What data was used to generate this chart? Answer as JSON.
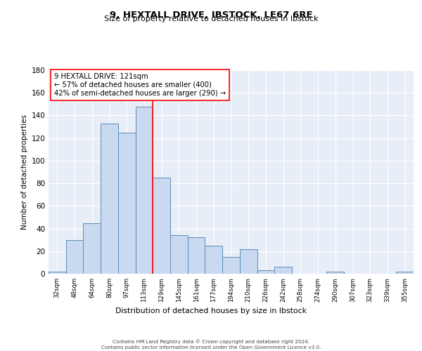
{
  "title1": "9, HEXTALL DRIVE, IBSTOCK, LE67 6RE",
  "title2": "Size of property relative to detached houses in Ibstock",
  "xlabel": "Distribution of detached houses by size in Ibstock",
  "ylabel": "Number of detached properties",
  "categories": [
    "32sqm",
    "48sqm",
    "64sqm",
    "80sqm",
    "97sqm",
    "113sqm",
    "129sqm",
    "145sqm",
    "161sqm",
    "177sqm",
    "194sqm",
    "210sqm",
    "226sqm",
    "242sqm",
    "258sqm",
    "274sqm",
    "290sqm",
    "307sqm",
    "323sqm",
    "339sqm",
    "355sqm"
  ],
  "values": [
    2,
    30,
    45,
    133,
    125,
    148,
    85,
    34,
    32,
    25,
    15,
    22,
    3,
    6,
    0,
    0,
    2,
    0,
    0,
    0,
    2
  ],
  "bar_color": "#c9d9ef",
  "bar_edge_color": "#5b8db8",
  "annotation_text": "9 HEXTALL DRIVE: 121sqm\n← 57% of detached houses are smaller (400)\n42% of semi-detached houses are larger (290) →",
  "annotation_box_color": "white",
  "annotation_box_edge_color": "red",
  "vline_color": "red",
  "background_color": "#e8eef8",
  "grid_color": "white",
  "ylim": [
    0,
    180
  ],
  "yticks": [
    0,
    20,
    40,
    60,
    80,
    100,
    120,
    140,
    160,
    180
  ],
  "footer1": "Contains HM Land Registry data © Crown copyright and database right 2024.",
  "footer2": "Contains public sector information licensed under the Open Government Licence v3.0."
}
